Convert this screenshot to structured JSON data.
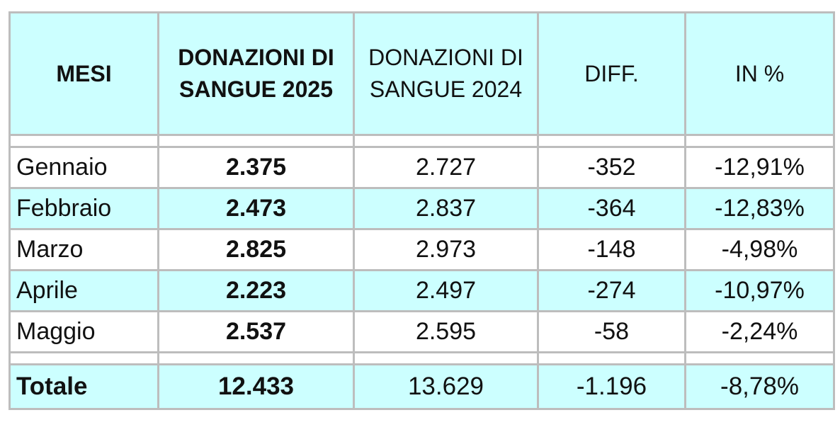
{
  "header": {
    "mesi": "MESI",
    "donazioni_2025": "DONAZIONI DI SANGUE 2025",
    "donazioni_2024": "DONAZIONI DI SANGUE 2024",
    "diff": "DIFF.",
    "percent": "IN %"
  },
  "rows": [
    {
      "mese": "Gennaio",
      "d2025": "2.375",
      "d2024": "2.727",
      "diff": "-352",
      "pct": "-12,91%"
    },
    {
      "mese": "Febbraio",
      "d2025": "2.473",
      "d2024": "2.837",
      "diff": "-364",
      "pct": "-12,83%"
    },
    {
      "mese": "Marzo",
      "d2025": "2.825",
      "d2024": "2.973",
      "diff": "-148",
      "pct": "-4,98%"
    },
    {
      "mese": "Aprile",
      "d2025": "2.223",
      "d2024": "2.497",
      "diff": "-274",
      "pct": "-10,97%"
    },
    {
      "mese": "Maggio",
      "d2025": "2.537",
      "d2024": "2.595",
      "diff": "-58",
      "pct": "-2,24%"
    }
  ],
  "total": {
    "mese": "Totale",
    "d2025": "12.433",
    "d2024": "13.629",
    "diff": "-1.196",
    "pct": "-8,78%"
  }
}
